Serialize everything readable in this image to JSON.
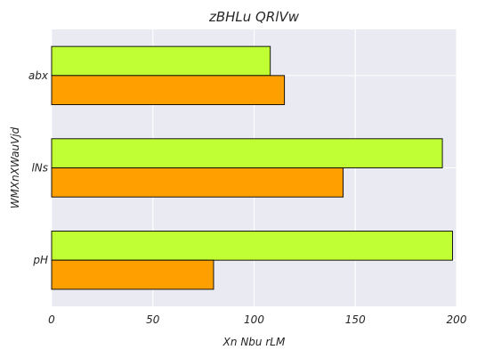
{
  "chart_data": {
    "type": "bar",
    "orientation": "horizontal",
    "title": "zBHLu QRlVw",
    "xlabel": "Xn Nbu rLM",
    "ylabel": "WMXnXWauVjd",
    "categories": [
      "abx",
      "lNs",
      "pH"
    ],
    "series": [
      {
        "values": [
          108,
          193,
          198
        ],
        "color": "#c0ff33"
      },
      {
        "values": [
          115,
          144,
          80
        ],
        "color": "#ffa000"
      }
    ],
    "xlim": [
      0,
      200
    ],
    "xticks": [
      "0",
      "50",
      "100",
      "150",
      "200"
    ],
    "grid": true,
    "background": "#eaeaf2"
  }
}
